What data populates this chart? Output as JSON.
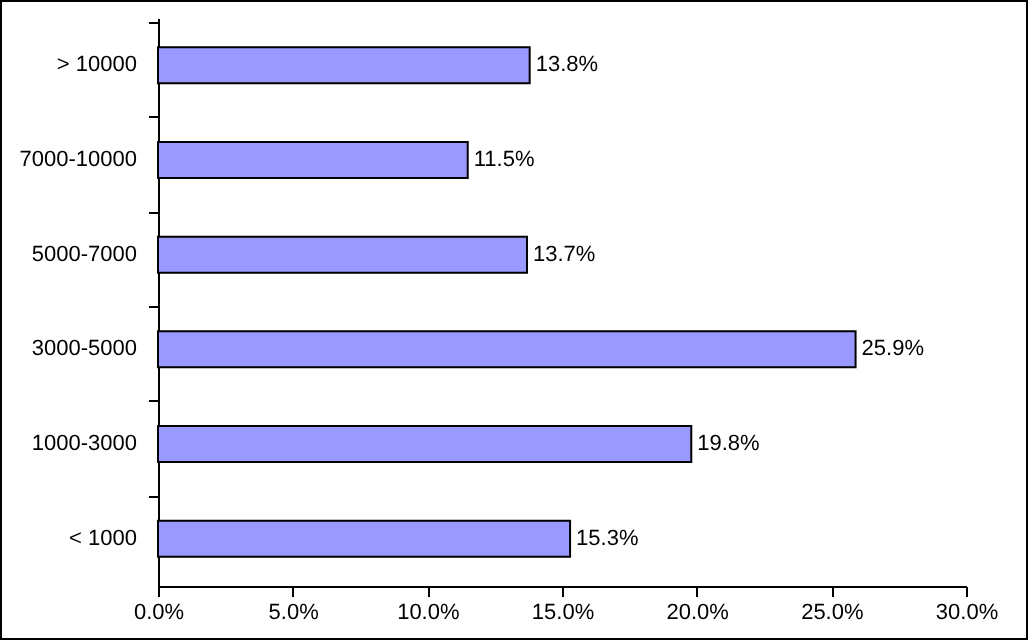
{
  "chart_data": {
    "type": "bar",
    "orientation": "horizontal",
    "categories": [
      "> 10000",
      "7000-10000",
      "5000-7000",
      "3000-5000",
      "1000-3000",
      "< 1000"
    ],
    "values": [
      13.8,
      11.5,
      13.7,
      25.9,
      19.8,
      15.3
    ],
    "value_labels": [
      "13.8%",
      "11.5%",
      "13.7%",
      "25.9%",
      "19.8%",
      "15.3%"
    ],
    "color": "#9999ff",
    "xlim": [
      0,
      30
    ],
    "xticks": [
      {
        "value": 0,
        "label": "0.0%"
      },
      {
        "value": 5,
        "label": "5.0%"
      },
      {
        "value": 10,
        "label": "10.0%"
      },
      {
        "value": 15,
        "label": "15.0%"
      },
      {
        "value": 20,
        "label": "20.0%"
      },
      {
        "value": 25,
        "label": "25.0%"
      },
      {
        "value": 30,
        "label": "30.0%"
      }
    ],
    "grid": false
  }
}
